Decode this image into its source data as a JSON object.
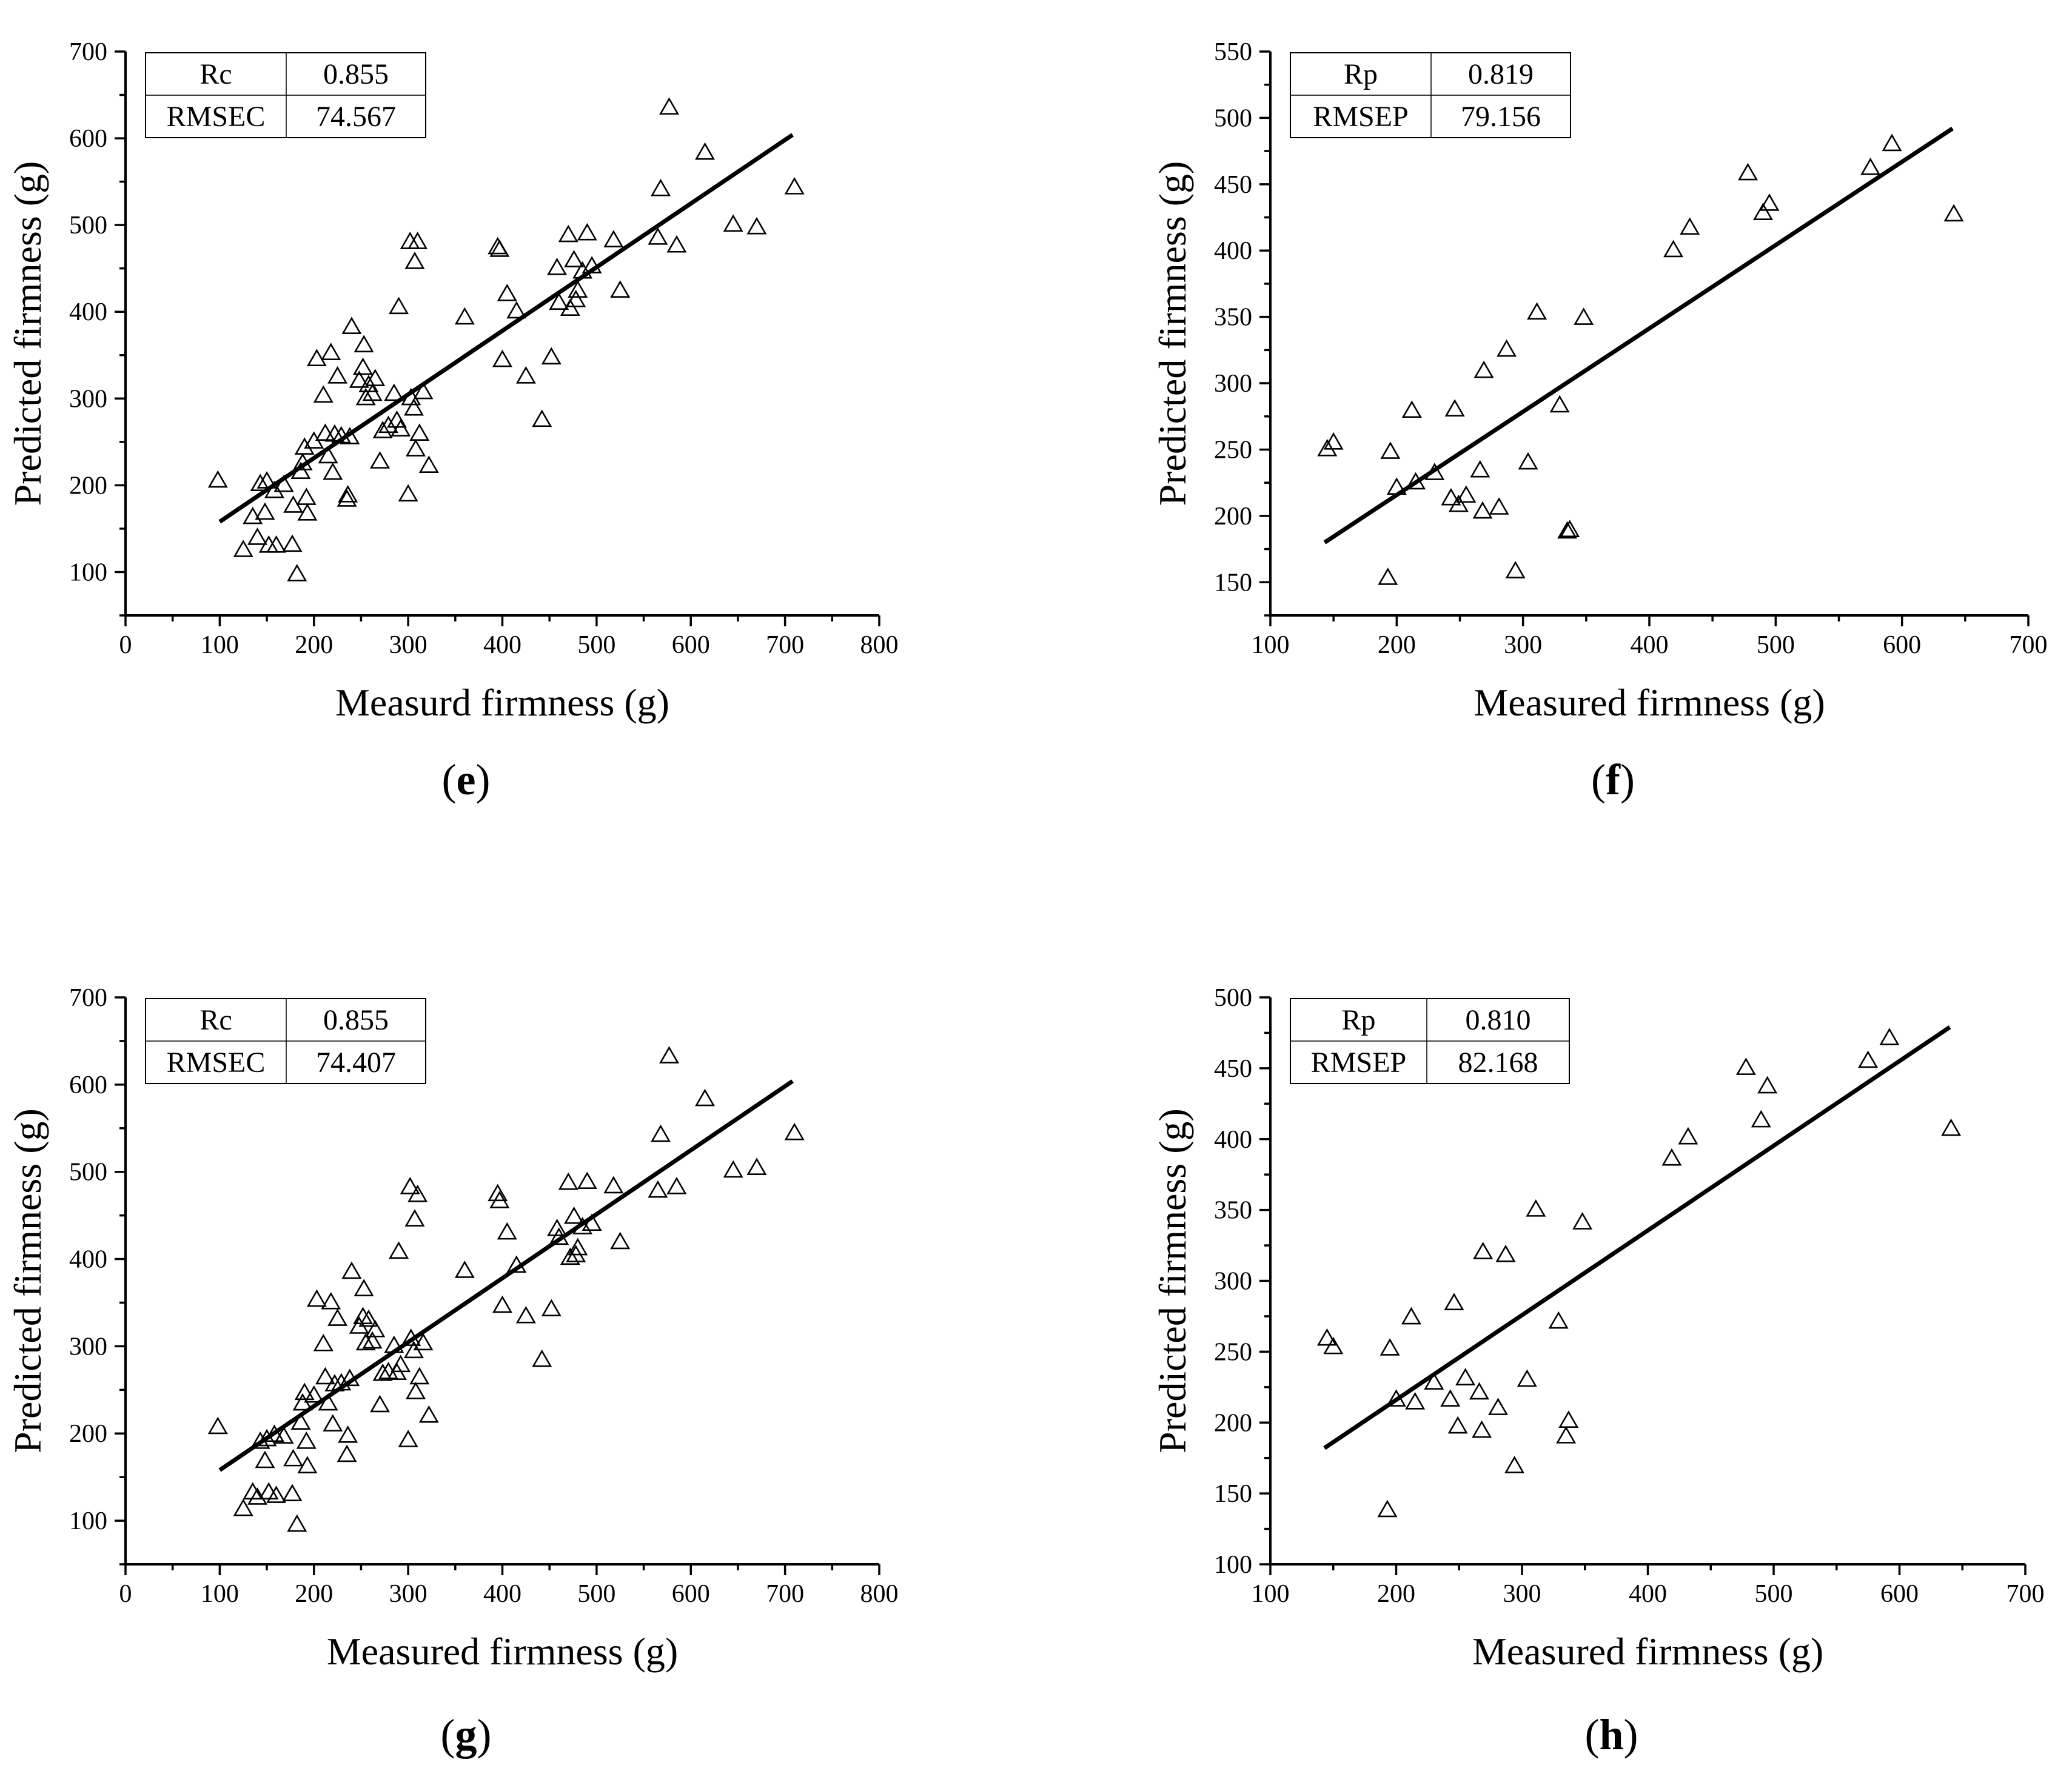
{
  "chart_data": [
    {
      "id": "e",
      "type": "scatter",
      "panel_label": "e",
      "xlabel": "Measurd firmness (g)",
      "ylabel": "Predicted firmness (g)",
      "xlim": [
        0,
        800
      ],
      "ylim": [
        50,
        700
      ],
      "xticks": [
        0,
        100,
        200,
        300,
        400,
        500,
        600,
        700,
        800
      ],
      "yticks": [
        100,
        200,
        300,
        400,
        500,
        600,
        700
      ],
      "legend_position": "top-left",
      "stats": [
        {
          "name": "Rc",
          "value": "0.855"
        },
        {
          "name": "RMSEC",
          "value": "74.567"
        }
      ],
      "fit_line": {
        "x": [
          100,
          708
        ],
        "y": [
          158,
          604
        ]
      },
      "points": [
        [
          98,
          205
        ],
        [
          125,
          125
        ],
        [
          135,
          163
        ],
        [
          140,
          139
        ],
        [
          143,
          201
        ],
        [
          148,
          168
        ],
        [
          150,
          204
        ],
        [
          152,
          130
        ],
        [
          158,
          193
        ],
        [
          160,
          130
        ],
        [
          168,
          200
        ],
        [
          177,
          131
        ],
        [
          178,
          176
        ],
        [
          182,
          97
        ],
        [
          186,
          215
        ],
        [
          188,
          225
        ],
        [
          190,
          243
        ],
        [
          192,
          185
        ],
        [
          193,
          167
        ],
        [
          200,
          250
        ],
        [
          203,
          345
        ],
        [
          210,
          303
        ],
        [
          212,
          259
        ],
        [
          215,
          233
        ],
        [
          218,
          352
        ],
        [
          220,
          214
        ],
        [
          222,
          258
        ],
        [
          225,
          325
        ],
        [
          229,
          256
        ],
        [
          235,
          183
        ],
        [
          236,
          188
        ],
        [
          238,
          255
        ],
        [
          240,
          382
        ],
        [
          248,
          320
        ],
        [
          252,
          335
        ],
        [
          253,
          361
        ],
        [
          255,
          300
        ],
        [
          258,
          315
        ],
        [
          262,
          305
        ],
        [
          265,
          322
        ],
        [
          270,
          227
        ],
        [
          273,
          262
        ],
        [
          279,
          268
        ],
        [
          285,
          305
        ],
        [
          288,
          274
        ],
        [
          290,
          405
        ],
        [
          292,
          264
        ],
        [
          300,
          189
        ],
        [
          302,
          480
        ],
        [
          303,
          300
        ],
        [
          306,
          288
        ],
        [
          307,
          457
        ],
        [
          308,
          241
        ],
        [
          310,
          480
        ],
        [
          312,
          259
        ],
        [
          316,
          307
        ],
        [
          322,
          222
        ],
        [
          360,
          393
        ],
        [
          395,
          474
        ],
        [
          397,
          471
        ],
        [
          400,
          344
        ],
        [
          405,
          420
        ],
        [
          415,
          400
        ],
        [
          425,
          325
        ],
        [
          442,
          275
        ],
        [
          452,
          347
        ],
        [
          458,
          450
        ],
        [
          460,
          410
        ],
        [
          470,
          488
        ],
        [
          472,
          403
        ],
        [
          476,
          459
        ],
        [
          478,
          413
        ],
        [
          480,
          424
        ],
        [
          485,
          446
        ],
        [
          490,
          490
        ],
        [
          495,
          452
        ],
        [
          518,
          482
        ],
        [
          525,
          424
        ],
        [
          565,
          485
        ],
        [
          568,
          541
        ],
        [
          577,
          635
        ],
        [
          585,
          476
        ],
        [
          615,
          583
        ],
        [
          645,
          500
        ],
        [
          670,
          497
        ],
        [
          710,
          543
        ]
      ]
    },
    {
      "id": "f",
      "type": "scatter",
      "panel_label": "f",
      "xlabel": "Measured firmness (g)",
      "ylabel": "Predicted firmness (g)",
      "xlim": [
        100,
        700
      ],
      "ylim": [
        125,
        550
      ],
      "xticks": [
        100,
        200,
        300,
        400,
        500,
        600,
        700
      ],
      "yticks": [
        150,
        200,
        250,
        300,
        350,
        400,
        450,
        500,
        550
      ],
      "legend_position": "top-left",
      "stats": [
        {
          "name": "Rp",
          "value": "0.819"
        },
        {
          "name": "RMSEP",
          "value": "79.156"
        }
      ],
      "fit_line": {
        "x": [
          143,
          640
        ],
        "y": [
          180,
          492
        ]
      },
      "points": [
        [
          145,
          250
        ],
        [
          150,
          255
        ],
        [
          193,
          153
        ],
        [
          195,
          248
        ],
        [
          200,
          221
        ],
        [
          212,
          279
        ],
        [
          215,
          225
        ],
        [
          230,
          232
        ],
        [
          243,
          213
        ],
        [
          246,
          280
        ],
        [
          249,
          208
        ],
        [
          255,
          215
        ],
        [
          266,
          234
        ],
        [
          268,
          203
        ],
        [
          269,
          309
        ],
        [
          281,
          206
        ],
        [
          287,
          325
        ],
        [
          294,
          158
        ],
        [
          304,
          240
        ],
        [
          311,
          353
        ],
        [
          329,
          283
        ],
        [
          335,
          188
        ],
        [
          337,
          189
        ],
        [
          348,
          349
        ],
        [
          419,
          400
        ],
        [
          432,
          417
        ],
        [
          478,
          458
        ],
        [
          490,
          428
        ],
        [
          495,
          435
        ],
        [
          575,
          462
        ],
        [
          592,
          480
        ],
        [
          641,
          427
        ]
      ]
    },
    {
      "id": "g",
      "type": "scatter",
      "panel_label": "g",
      "xlabel": "Measured firmness (g)",
      "ylabel": "Predicted firmness (g)",
      "xlim": [
        0,
        800
      ],
      "ylim": [
        50,
        700
      ],
      "xticks": [
        0,
        100,
        200,
        300,
        400,
        500,
        600,
        700,
        800
      ],
      "yticks": [
        100,
        200,
        300,
        400,
        500,
        600,
        700
      ],
      "legend_position": "top-left",
      "stats": [
        {
          "name": "Rc",
          "value": "0.855"
        },
        {
          "name": "RMSEC",
          "value": "74.407"
        }
      ],
      "fit_line": {
        "x": [
          100,
          708
        ],
        "y": [
          158,
          604
        ]
      },
      "points": [
        [
          98,
          207
        ],
        [
          125,
          113
        ],
        [
          135,
          132
        ],
        [
          140,
          126
        ],
        [
          143,
          190
        ],
        [
          148,
          168
        ],
        [
          150,
          193
        ],
        [
          152,
          132
        ],
        [
          158,
          198
        ],
        [
          160,
          128
        ],
        [
          168,
          196
        ],
        [
          177,
          130
        ],
        [
          178,
          170
        ],
        [
          182,
          95
        ],
        [
          186,
          212
        ],
        [
          188,
          234
        ],
        [
          190,
          246
        ],
        [
          192,
          190
        ],
        [
          193,
          162
        ],
        [
          200,
          243
        ],
        [
          203,
          353
        ],
        [
          210,
          302
        ],
        [
          212,
          264
        ],
        [
          215,
          234
        ],
        [
          218,
          350
        ],
        [
          220,
          210
        ],
        [
          222,
          256
        ],
        [
          225,
          331
        ],
        [
          229,
          257
        ],
        [
          235,
          175
        ],
        [
          236,
          197
        ],
        [
          238,
          262
        ],
        [
          240,
          385
        ],
        [
          248,
          322
        ],
        [
          252,
          333
        ],
        [
          253,
          365
        ],
        [
          255,
          303
        ],
        [
          258,
          330
        ],
        [
          262,
          305
        ],
        [
          265,
          318
        ],
        [
          270,
          232
        ],
        [
          273,
          268
        ],
        [
          279,
          270
        ],
        [
          285,
          300
        ],
        [
          288,
          269
        ],
        [
          290,
          408
        ],
        [
          292,
          278
        ],
        [
          300,
          192
        ],
        [
          302,
          482
        ],
        [
          303,
          308
        ],
        [
          306,
          294
        ],
        [
          307,
          445
        ],
        [
          308,
          247
        ],
        [
          310,
          473
        ],
        [
          312,
          264
        ],
        [
          316,
          303
        ],
        [
          322,
          220
        ],
        [
          360,
          386
        ],
        [
          395,
          474
        ],
        [
          397,
          466
        ],
        [
          400,
          346
        ],
        [
          405,
          430
        ],
        [
          415,
          392
        ],
        [
          425,
          334
        ],
        [
          442,
          284
        ],
        [
          452,
          342
        ],
        [
          458,
          434
        ],
        [
          460,
          424
        ],
        [
          470,
          487
        ],
        [
          472,
          401
        ],
        [
          476,
          448
        ],
        [
          478,
          404
        ],
        [
          480,
          412
        ],
        [
          485,
          436
        ],
        [
          490,
          488
        ],
        [
          495,
          440
        ],
        [
          518,
          483
        ],
        [
          525,
          419
        ],
        [
          565,
          478
        ],
        [
          568,
          542
        ],
        [
          577,
          632
        ],
        [
          585,
          482
        ],
        [
          615,
          583
        ],
        [
          645,
          501
        ],
        [
          670,
          504
        ],
        [
          710,
          544
        ]
      ]
    },
    {
      "id": "h",
      "type": "scatter",
      "panel_label": "h",
      "xlabel": "Measured firmness (g)",
      "ylabel": "Predicted firmness (g)",
      "xlim": [
        100,
        700
      ],
      "ylim": [
        100,
        500
      ],
      "xticks": [
        100,
        200,
        300,
        400,
        500,
        600,
        700
      ],
      "yticks": [
        100,
        150,
        200,
        250,
        300,
        350,
        400,
        450,
        500
      ],
      "legend_position": "top-left",
      "stats": [
        {
          "name": "Rp",
          "value": "0.810"
        },
        {
          "name": "RMSEP",
          "value": "82.168"
        }
      ],
      "fit_line": {
        "x": [
          143,
          640
        ],
        "y": [
          182,
          479
        ]
      },
      "points": [
        [
          145,
          259
        ],
        [
          150,
          253
        ],
        [
          193,
          138
        ],
        [
          195,
          252
        ],
        [
          200,
          216
        ],
        [
          212,
          274
        ],
        [
          215,
          214
        ],
        [
          230,
          228
        ],
        [
          243,
          216
        ],
        [
          246,
          284
        ],
        [
          249,
          197
        ],
        [
          255,
          231
        ],
        [
          266,
          221
        ],
        [
          268,
          194
        ],
        [
          269,
          320
        ],
        [
          281,
          210
        ],
        [
          287,
          318
        ],
        [
          294,
          169
        ],
        [
          304,
          230
        ],
        [
          311,
          350
        ],
        [
          329,
          271
        ],
        [
          335,
          190
        ],
        [
          337,
          201
        ],
        [
          348,
          341
        ],
        [
          419,
          386
        ],
        [
          432,
          401
        ],
        [
          478,
          450
        ],
        [
          490,
          413
        ],
        [
          495,
          437
        ],
        [
          575,
          455
        ],
        [
          592,
          471
        ],
        [
          641,
          407
        ]
      ]
    }
  ]
}
